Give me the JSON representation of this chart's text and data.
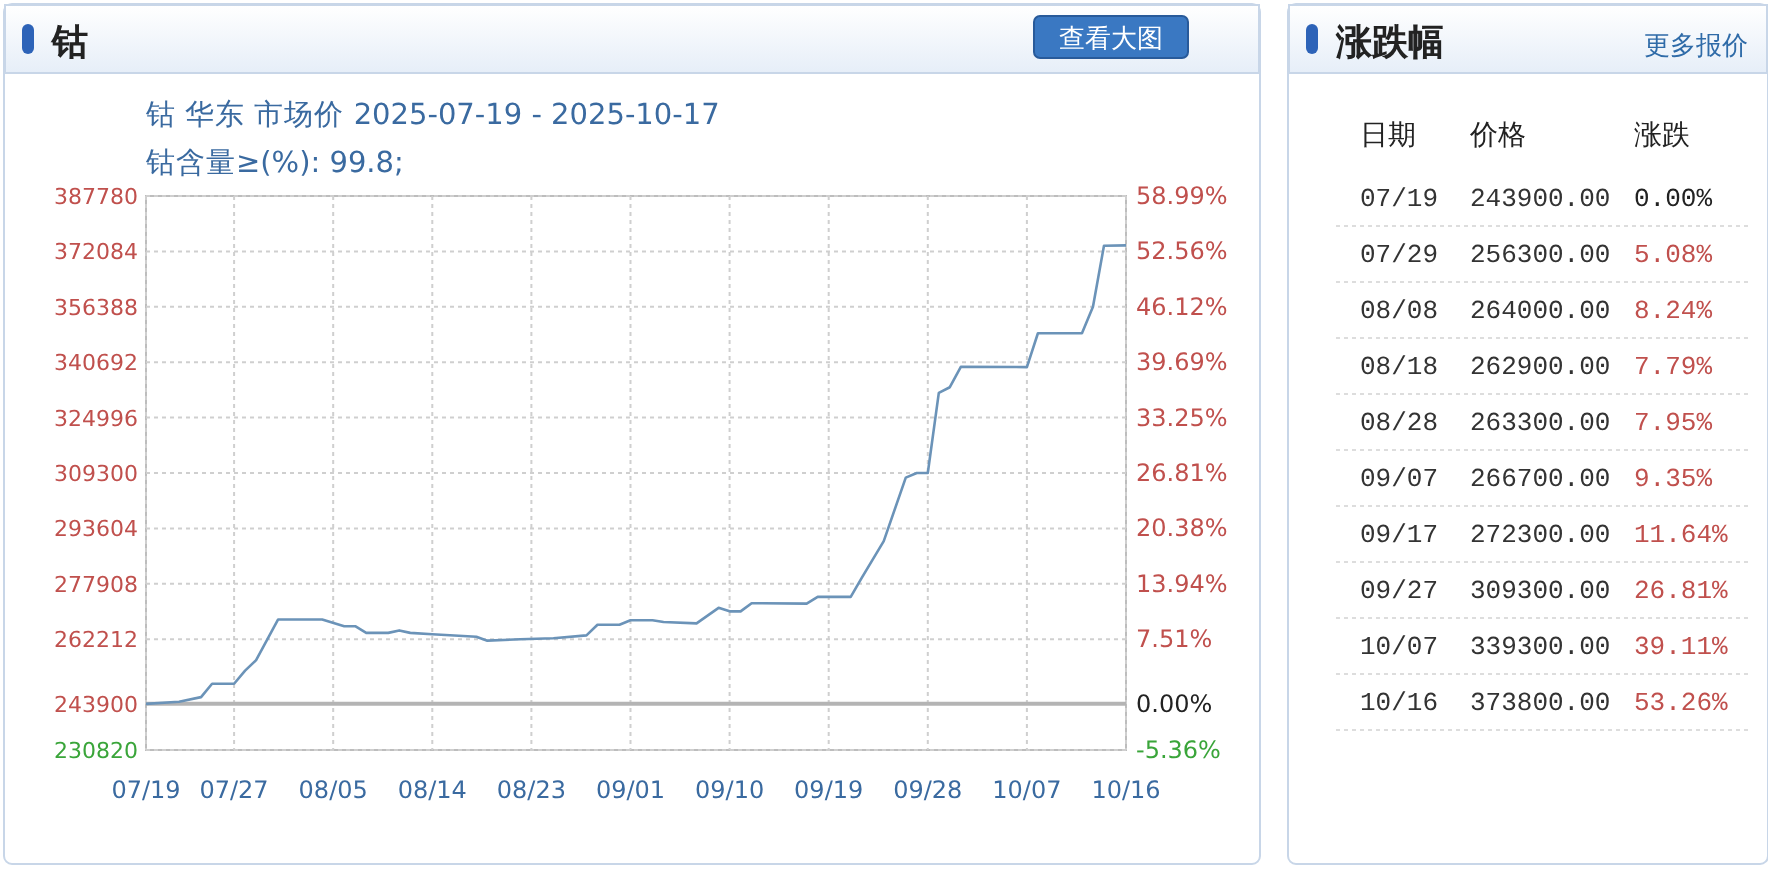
{
  "chart_data": [
    {
      "type": "line",
      "title": "钴",
      "subtitle": "钴 华东 市场价 2025-07-19 - 2025-10-17",
      "annotations": [
        "钴含量≥(%): 99.8;",
        "查看大图"
      ],
      "x": [
        "2025-07-19",
        "2025-07-22",
        "2025-07-24",
        "2025-07-25",
        "2025-07-27",
        "2025-07-28",
        "2025-07-29",
        "2025-07-31",
        "2025-08-04",
        "2025-08-06",
        "2025-08-07",
        "2025-08-08",
        "2025-08-10",
        "2025-08-11",
        "2025-08-12",
        "2025-08-14",
        "2025-08-18",
        "2025-08-19",
        "2025-08-22",
        "2025-08-25",
        "2025-08-28",
        "2025-08-29",
        "2025-08-31",
        "2025-09-01",
        "2025-09-03",
        "2025-09-04",
        "2025-09-07",
        "2025-09-09",
        "2025-09-10",
        "2025-09-11",
        "2025-09-12",
        "2025-09-17",
        "2025-09-18",
        "2025-09-21",
        "2025-09-22",
        "2025-09-24",
        "2025-09-26",
        "2025-09-27",
        "2025-09-28",
        "2025-09-29",
        "2025-09-30",
        "2025-10-01",
        "2025-10-07",
        "2025-10-08",
        "2025-10-12",
        "2025-10-13",
        "2025-10-14",
        "2025-10-16"
      ],
      "series": [
        {
          "color": "#6b93b8",
          "values": [
            243900,
            244500,
            245800,
            249600,
            249600,
            253300,
            256300,
            267800,
            267800,
            265900,
            265900,
            264000,
            264000,
            264700,
            264000,
            263600,
            262900,
            261800,
            262200,
            262500,
            263300,
            266300,
            266300,
            267600,
            267600,
            267100,
            266700,
            271100,
            270100,
            270100,
            272400,
            272300,
            274200,
            274200,
            279600,
            290000,
            308000,
            309300,
            309300,
            332000,
            333600,
            339400,
            339300,
            348900,
            348900,
            356400,
            373700,
            373800
          ]
        }
      ],
      "xlim": [
        "2025-07-19",
        "2025-10-16"
      ],
      "xticks": [
        {
          "value": "2025-07-19",
          "label": "07/19"
        },
        {
          "value": "2025-07-27",
          "label": "07/27"
        },
        {
          "value": "2025-08-05",
          "label": "08/05"
        },
        {
          "value": "2025-08-14",
          "label": "08/14"
        },
        {
          "value": "2025-08-23",
          "label": "08/23"
        },
        {
          "value": "2025-09-01",
          "label": "09/01"
        },
        {
          "value": "2025-09-10",
          "label": "09/10"
        },
        {
          "value": "2025-09-19",
          "label": "09/19"
        },
        {
          "value": "2025-09-28",
          "label": "09/28"
        },
        {
          "value": "2025-10-07",
          "label": "10/07"
        },
        {
          "value": "2025-10-16",
          "label": "10/16"
        }
      ],
      "ylim": [
        230820,
        387780
      ],
      "yticks": [
        230820,
        243900,
        262212,
        277908,
        293604,
        309300,
        324996,
        340692,
        356388,
        372084,
        387780
      ],
      "y2lim": [
        -5.36,
        58.99
      ],
      "y2ticks": [
        {
          "value": -5.36,
          "label": "-5.36%"
        },
        {
          "value": 0,
          "label": "0.00%"
        },
        {
          "value": 7.51,
          "label": "7.51%"
        },
        {
          "value": 13.94,
          "label": "13.94%"
        },
        {
          "value": 20.38,
          "label": "20.38%"
        },
        {
          "value": 26.81,
          "label": "26.81%"
        },
        {
          "value": 33.25,
          "label": "33.25%"
        },
        {
          "value": 39.69,
          "label": "39.69%"
        },
        {
          "value": 46.12,
          "label": "46.12%"
        },
        {
          "value": 52.56,
          "label": "52.56%"
        },
        {
          "value": 58.99,
          "label": "58.99%"
        }
      ],
      "ref_lines": [
        {
          "axis": "y2",
          "value": 0,
          "color": "#b4b4b4"
        }
      ],
      "grid": true,
      "marker": "none",
      "line_style": "solid"
    },
    {
      "type": "other",
      "title": "涨跌幅",
      "annotations": [
        "更多报价"
      ],
      "xlabel": "日期",
      "categories": [
        "07/19",
        "07/29",
        "08/08",
        "08/18",
        "08/28",
        "09/07",
        "09/17",
        "09/27",
        "10/07",
        "10/16"
      ],
      "series": [
        {
          "name": "价格",
          "values": [
            243900,
            256300,
            264000,
            262900,
            263300,
            266700,
            272300,
            309300,
            339300,
            373800
          ],
          "value_labels": [
            "243900.00",
            "256300.00",
            "264000.00",
            "262900.00",
            "263300.00",
            "266700.00",
            "272300.00",
            "309300.00",
            "339300.00",
            "373800.00"
          ]
        },
        {
          "name": "涨跌",
          "values": [
            0,
            5.08,
            8.24,
            7.79,
            7.95,
            9.35,
            11.64,
            26.81,
            39.11,
            53.26
          ],
          "value_labels": [
            "0.00%",
            "5.08%",
            "8.24%",
            "7.79%",
            "7.95%",
            "9.35%",
            "11.64%",
            "26.81%",
            "39.11%",
            "53.26%"
          ]
        }
      ]
    }
  ]
}
